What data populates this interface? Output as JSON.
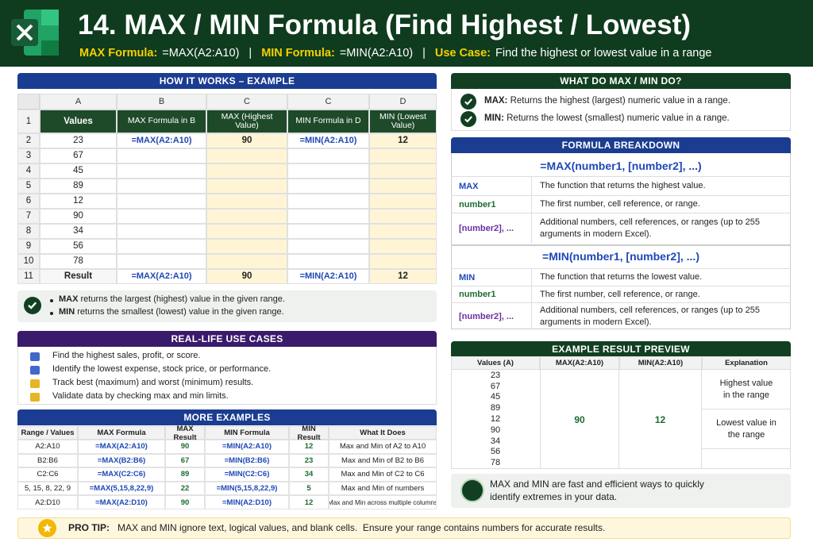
{
  "header": {
    "title": "14. MAX / MIN Formula (Find Highest / Lowest)",
    "separator": "|",
    "subtitle": [
      {
        "label": "MAX Formula:",
        "text": "=MAX(A2:A10)"
      },
      {
        "label": "MIN Formula:",
        "text": "=MIN(A2:A10)"
      },
      {
        "label": "Use Case:",
        "text": "Find the highest or lowest value in a range"
      }
    ]
  },
  "how_it_works": {
    "title": "HOW IT WORKS – EXAMPLE",
    "column_letters": [
      "A",
      "B",
      "C",
      "C",
      "D"
    ],
    "rows": [
      [
        1,
        "Values",
        "MAX Formula in B",
        "MAX (Highest Value)",
        "MIN Formula in D",
        "MIN (Lowest Value)"
      ],
      [
        2,
        23,
        "=MAX(A2:A10)",
        90,
        "=MIN(A2:A10)",
        12
      ],
      [
        3,
        67,
        null,
        null,
        null,
        null
      ],
      [
        4,
        45,
        null,
        null,
        null,
        null
      ],
      [
        5,
        89,
        null,
        null,
        null,
        null
      ],
      [
        6,
        12,
        null,
        null,
        null,
        null
      ],
      [
        7,
        90,
        null,
        null,
        null,
        null
      ],
      [
        8,
        34,
        null,
        null,
        null,
        null
      ],
      [
        9,
        56,
        null,
        null,
        null,
        null
      ],
      [
        10,
        78,
        null,
        null,
        null,
        null
      ],
      [
        11,
        "Result",
        "=MAX(A2:A10)",
        90,
        "=MIN(A2:A10)",
        12
      ]
    ],
    "notes": [
      {
        "term": "MAX",
        "text": "returns the largest (highest) value in the given range."
      },
      {
        "term": "MIN",
        "text": "returns the smallest (lowest) value in the given range."
      }
    ]
  },
  "use_cases": {
    "title": "REAL-LIFE USE CASES",
    "items": [
      "Find the highest sales, profit, or score.",
      "Identify the lowest expense, stock price, or performance.",
      "Track best (maximum) and worst (minimum) results.",
      "Validate data by checking max and min limits."
    ]
  },
  "more_examples": {
    "title": "MORE EXAMPLES",
    "columns": [
      "Range / Values",
      "MAX Formula",
      "MAX Result",
      "MIN Formula",
      "MIN Result",
      "What It Does"
    ],
    "rows": [
      [
        "A2:A10",
        "=MAX(A2:A10)",
        90,
        "=MIN(A2:A10)",
        12,
        "Max and Min of A2 to A10"
      ],
      [
        "B2:B6",
        "=MAX(B2:B6)",
        67,
        "=MIN(B2:B6)",
        23,
        "Max and Min of B2 to B6"
      ],
      [
        "C2:C6",
        "=MAX(C2:C6)",
        89,
        "=MIN(C2:C6)",
        34,
        "Max and Min of C2 to C6"
      ],
      [
        "5, 15, 8, 22, 9",
        "=MAX(5,15,8,22,9)",
        22,
        "=MIN(5,15,8,22,9)",
        5,
        "Max and Min of numbers"
      ],
      [
        "A2:D10",
        "=MAX(A2:D10)",
        90,
        "=MIN(A2:D10)",
        12,
        "Max and Min across multiple columns"
      ]
    ]
  },
  "what_do": {
    "title": "WHAT DO MAX / MIN DO?",
    "items": [
      {
        "term": "MAX:",
        "text": "Returns the highest (largest) numeric value in a range."
      },
      {
        "term": "MIN:",
        "text": "Returns the lowest (smallest) numeric value in a range."
      }
    ]
  },
  "breakdown": {
    "title": "FORMULA BREAKDOWN",
    "sections": [
      {
        "formula": "=MAX(number1, [number2], ...)",
        "rows": [
          {
            "term": "MAX",
            "desc": "The function that returns the highest value."
          },
          {
            "term": "number1",
            "desc": "The first number, cell reference, or range."
          },
          {
            "term": "[number2], ...",
            "desc": "Additional numbers, cell references, or ranges (up to 255 arguments in modern Excel)."
          }
        ]
      },
      {
        "formula": "=MIN(number1, [number2], ...)",
        "rows": [
          {
            "term": "MIN",
            "desc": "The function that returns the lowest value."
          },
          {
            "term": "number1",
            "desc": "The first number, cell reference, or range."
          },
          {
            "term": "[number2], ...",
            "desc": "Additional numbers, cell references, or ranges (up to 255 arguments in modern Excel)."
          }
        ]
      }
    ]
  },
  "preview": {
    "title": "EXAMPLE RESULT PREVIEW",
    "columns": [
      "Values (A)",
      "MAX(A2:A10)",
      "MIN(A2:A10)",
      "Explanation"
    ],
    "values": [
      23,
      67,
      45,
      89,
      12,
      90,
      34,
      56,
      78
    ],
    "max": 90,
    "min": 12,
    "explanations": [
      "Highest value in the range",
      "Lowest value in the range"
    ]
  },
  "tip": "MAX and MIN are fast and efficient ways to quickly identify extremes in your data.",
  "pro_tip": {
    "label": "PRO TIP:",
    "text": "MAX and MIN ignore text, logical values, and blank cells.  Ensure your range contains numbers for accurate results."
  }
}
